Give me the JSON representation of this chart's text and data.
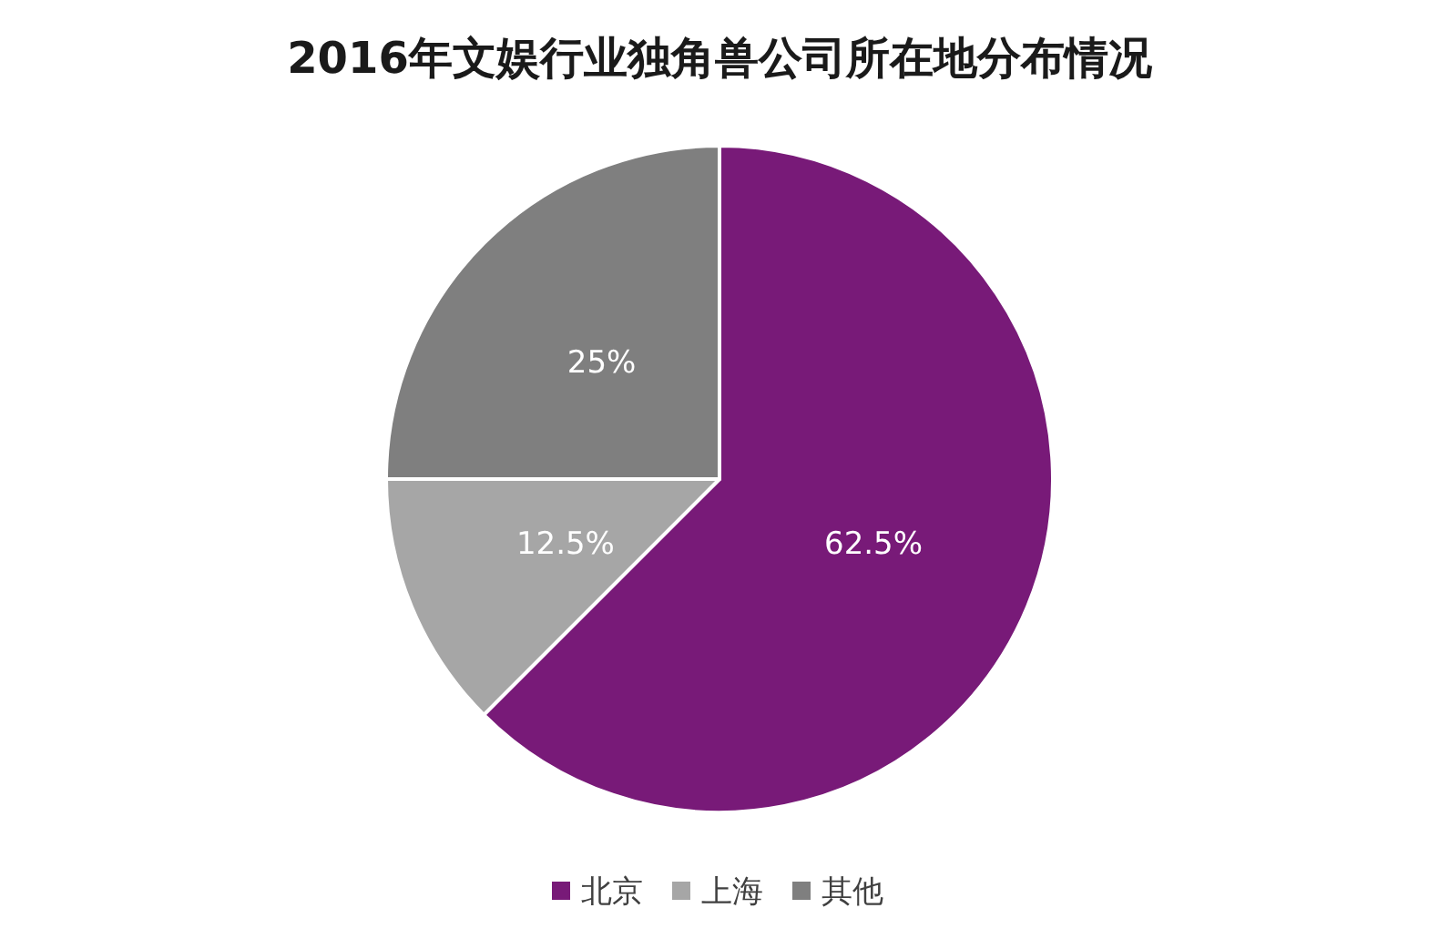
{
  "chart_data": {
    "type": "pie",
    "title": "2016年文娱行业独角兽公司所在地分布情况",
    "categories": [
      "北京",
      "上海",
      "其他"
    ],
    "values": [
      62.5,
      12.5,
      25
    ],
    "colors": [
      "#781a78",
      "#a6a6a6",
      "#7f7f7f"
    ],
    "value_labels": [
      "62.5%",
      "12.5%",
      "25%"
    ],
    "legend": "bottom"
  }
}
